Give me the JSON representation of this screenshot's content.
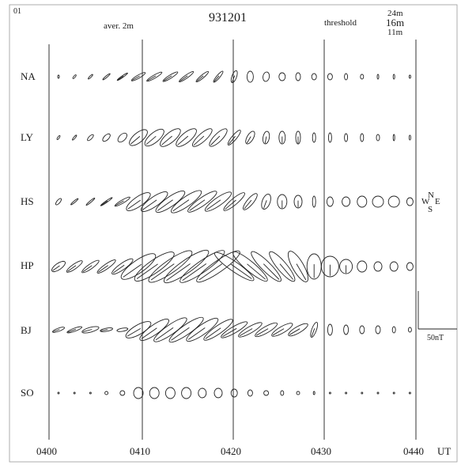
{
  "corner_label": "01",
  "average_label": "aver. 2m",
  "date_code": "931201",
  "threshold_label": "threshold",
  "threshold_values": [
    "24m",
    "16m",
    "11m"
  ],
  "stations": [
    "NA",
    "LY",
    "HS",
    "HP",
    "BJ",
    "SO"
  ],
  "time_labels": [
    "0400",
    "0410",
    "0420",
    "0430",
    "0440"
  ],
  "time_unit": "UT",
  "compass": {
    "north": "N",
    "south": "S",
    "east": "E",
    "west": "W"
  },
  "scale_label": "50nT",
  "ellipse_rows": [
    {
      "station": "NA",
      "cells": [
        [
          2,
          1,
          0
        ],
        [
          3,
          1,
          40
        ],
        [
          4,
          1,
          45
        ],
        [
          6,
          1,
          50
        ],
        [
          8,
          1,
          55
        ],
        [
          10,
          2,
          60
        ],
        [
          11,
          2,
          60
        ],
        [
          11,
          2,
          58
        ],
        [
          11,
          2,
          55
        ],
        [
          10,
          2,
          50
        ],
        [
          9,
          2,
          40
        ],
        [
          8,
          3,
          20
        ],
        [
          7,
          4,
          0
        ],
        [
          6,
          4,
          10
        ],
        [
          5,
          4,
          0
        ],
        [
          5,
          3,
          0
        ],
        [
          4,
          3,
          0
        ],
        [
          4,
          3,
          0
        ],
        [
          4,
          2,
          0
        ],
        [
          3,
          2,
          0
        ],
        [
          3,
          1,
          0
        ],
        [
          3,
          1,
          0
        ],
        [
          2,
          1,
          0
        ]
      ]
    },
    {
      "station": "LY",
      "cells": [
        [
          3,
          1,
          35
        ],
        [
          4,
          1,
          40
        ],
        [
          5,
          2,
          45
        ],
        [
          6,
          3,
          45
        ],
        [
          7,
          4,
          45
        ],
        [
          14,
          6,
          50
        ],
        [
          15,
          6,
          50
        ],
        [
          16,
          6,
          50
        ],
        [
          16,
          6,
          50
        ],
        [
          16,
          5,
          48
        ],
        [
          15,
          5,
          45
        ],
        [
          12,
          3,
          40
        ],
        [
          9,
          4,
          30
        ],
        [
          8,
          4,
          10
        ],
        [
          8,
          4,
          0
        ],
        [
          8,
          3,
          0
        ],
        [
          6,
          2,
          0
        ],
        [
          6,
          2,
          0
        ],
        [
          5,
          2,
          0
        ],
        [
          5,
          2,
          0
        ],
        [
          4,
          2,
          0
        ],
        [
          4,
          1,
          0
        ],
        [
          3,
          1,
          0
        ]
      ]
    },
    {
      "station": "HS",
      "cells": [
        [
          5,
          2,
          40
        ],
        [
          6,
          1,
          50
        ],
        [
          7,
          1,
          50
        ],
        [
          9,
          1,
          55
        ],
        [
          11,
          2,
          60
        ],
        [
          18,
          6,
          55
        ],
        [
          20,
          6,
          55
        ],
        [
          22,
          6,
          55
        ],
        [
          23,
          6,
          55
        ],
        [
          22,
          5,
          55
        ],
        [
          20,
          5,
          55
        ],
        [
          17,
          4,
          50
        ],
        [
          13,
          4,
          40
        ],
        [
          10,
          5,
          20
        ],
        [
          9,
          6,
          0
        ],
        [
          8,
          5,
          0
        ],
        [
          7,
          2,
          0
        ],
        [
          6,
          4,
          0
        ],
        [
          6,
          5,
          0
        ],
        [
          7,
          6,
          0
        ],
        [
          7,
          7,
          0
        ],
        [
          7,
          7,
          0
        ],
        [
          5,
          4,
          0
        ]
      ]
    },
    {
      "station": "HP",
      "cells": [
        [
          10,
          4,
          55
        ],
        [
          12,
          3,
          55
        ],
        [
          13,
          3,
          55
        ],
        [
          14,
          3,
          55
        ],
        [
          16,
          4,
          55
        ],
        [
          26,
          8,
          55
        ],
        [
          30,
          8,
          55
        ],
        [
          33,
          8,
          55
        ],
        [
          34,
          8,
          55
        ],
        [
          34,
          7,
          55
        ],
        [
          33,
          7,
          55
        ],
        [
          30,
          6,
          -55
        ],
        [
          28,
          6,
          -50
        ],
        [
          26,
          6,
          -45
        ],
        [
          24,
          6,
          -40
        ],
        [
          22,
          7,
          -30
        ],
        [
          16,
          9,
          0
        ],
        [
          13,
          11,
          0
        ],
        [
          9,
          8,
          0
        ],
        [
          7,
          6,
          0
        ],
        [
          6,
          5,
          0
        ],
        [
          6,
          5,
          0
        ],
        [
          5,
          4,
          0
        ]
      ]
    },
    {
      "station": "BJ",
      "cells": [
        [
          8,
          2,
          70
        ],
        [
          10,
          2,
          70
        ],
        [
          11,
          3,
          75
        ],
        [
          8,
          2,
          80
        ],
        [
          7,
          2,
          80
        ],
        [
          18,
          6,
          60
        ],
        [
          22,
          6,
          55
        ],
        [
          25,
          6,
          55
        ],
        [
          26,
          6,
          55
        ],
        [
          24,
          6,
          55
        ],
        [
          22,
          5,
          55
        ],
        [
          19,
          4,
          60
        ],
        [
          17,
          4,
          60
        ],
        [
          16,
          4,
          60
        ],
        [
          15,
          4,
          60
        ],
        [
          14,
          4,
          60
        ],
        [
          10,
          3,
          20
        ],
        [
          7,
          3,
          0
        ],
        [
          6,
          3,
          0
        ],
        [
          5,
          3,
          0
        ],
        [
          5,
          3,
          0
        ],
        [
          4,
          2,
          0
        ],
        [
          3,
          2,
          0
        ]
      ]
    },
    {
      "station": "SO",
      "cells": [
        [
          1,
          1,
          0
        ],
        [
          1,
          1,
          0
        ],
        [
          1,
          1,
          0
        ],
        [
          2,
          2,
          0
        ],
        [
          3,
          3,
          0
        ],
        [
          7,
          6,
          0
        ],
        [
          7,
          6,
          0
        ],
        [
          7,
          6,
          0
        ],
        [
          7,
          6,
          0
        ],
        [
          6,
          5,
          0
        ],
        [
          6,
          5,
          0
        ],
        [
          5,
          4,
          0
        ],
        [
          4,
          3,
          0
        ],
        [
          3,
          3,
          0
        ],
        [
          3,
          2,
          0
        ],
        [
          2,
          2,
          0
        ],
        [
          2,
          1,
          0
        ],
        [
          1,
          1,
          0
        ],
        [
          1,
          1,
          0
        ],
        [
          1,
          1,
          0
        ],
        [
          1,
          1,
          0
        ],
        [
          1,
          1,
          0
        ],
        [
          1,
          1,
          0
        ]
      ]
    }
  ]
}
